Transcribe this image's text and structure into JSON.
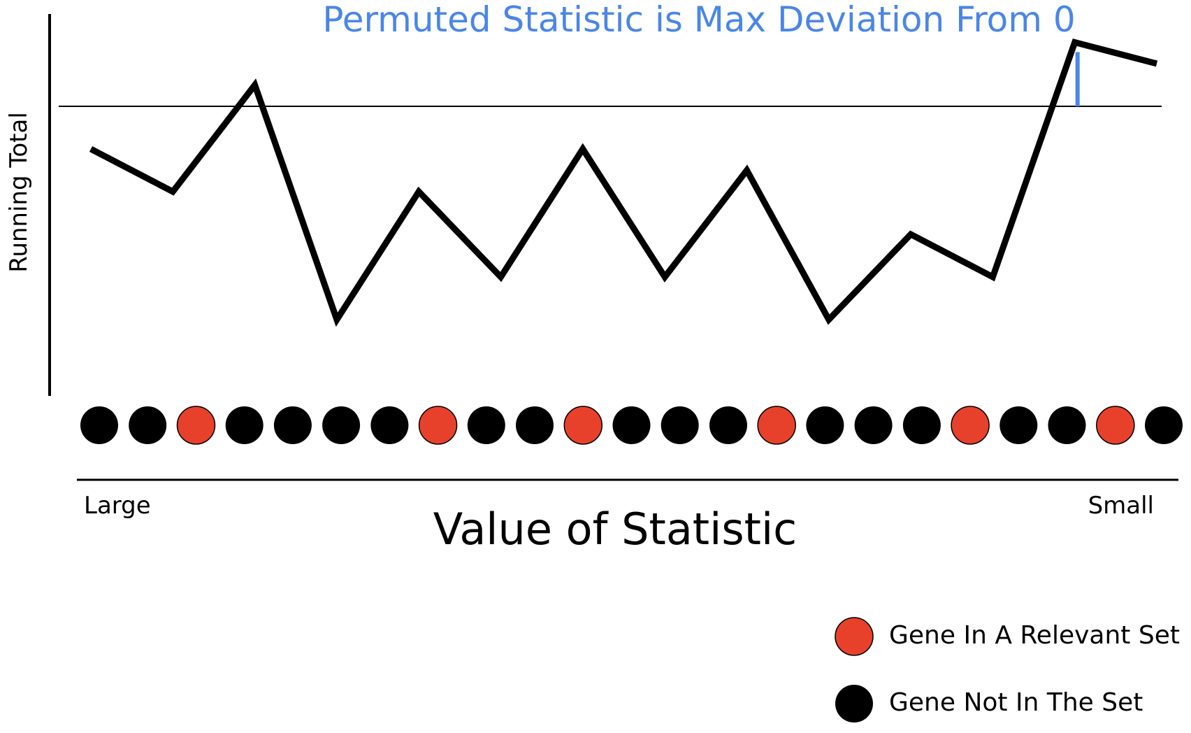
{
  "title": "Permuted Statistic is Max Deviation From 0",
  "y_axis_label": "Running Total",
  "x_axis_label": "Value of Statistic",
  "x_left_label": "Large",
  "x_right_label": "Small",
  "legend": {
    "in_set": "Gene In A Relevant Set",
    "not_in_set": "Gene Not In The Set"
  },
  "colors": {
    "in_set": "#e8412b",
    "not_in_set": "#000000",
    "title": "#4a86e8",
    "max_deviation_marker": "#4a86e8"
  },
  "genes": [
    0,
    0,
    1,
    0,
    0,
    0,
    0,
    1,
    0,
    0,
    1,
    0,
    0,
    0,
    1,
    0,
    0,
    0,
    1,
    0,
    0,
    1,
    0
  ],
  "running_total": [
    -2,
    -4,
    1,
    -10,
    -4,
    -8,
    -2,
    -8,
    -3,
    -10,
    -6,
    -8,
    3,
    2
  ],
  "baseline": 0,
  "icons": {
    "legend_in_set": "red-circle-icon",
    "legend_not_in_set": "black-circle-icon"
  }
}
